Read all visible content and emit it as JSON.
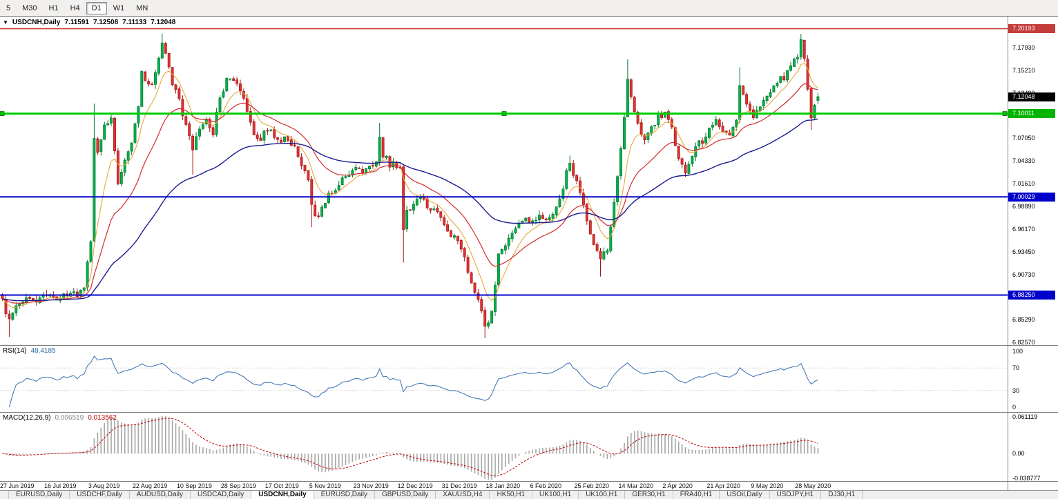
{
  "toolbar": {
    "timeframes": [
      {
        "label": "5",
        "active": false
      },
      {
        "label": "M30",
        "active": false
      },
      {
        "label": "H1",
        "active": false
      },
      {
        "label": "H4",
        "active": false
      },
      {
        "label": "D1",
        "active": true
      },
      {
        "label": "W1",
        "active": false
      },
      {
        "label": "MN",
        "active": false
      }
    ]
  },
  "quote_header": {
    "collapse_icon": "▼",
    "symbol_period": "USDCNH,Daily",
    "open": "7.11591",
    "high": "7.12508",
    "low": "7.11133",
    "close": "7.12048"
  },
  "current_price": {
    "label": "7.12048",
    "bg": "#000000",
    "fg": "#ffffff"
  },
  "price_axis": {
    "labels": [
      "7.17930",
      "7.15210",
      "7.12490",
      "7.09770",
      "7.07050",
      "7.04330",
      "7.01610",
      "6.98890",
      "6.96170",
      "6.93450",
      "6.90730",
      "6.88010",
      "6.85290",
      "6.82570"
    ]
  },
  "hlines": [
    {
      "price": 7.20193,
      "label": "7.20193",
      "color": "#c43b3b",
      "label_bg": "#c43b3b",
      "thickness": 1.6,
      "selected": false
    },
    {
      "price": 7.10011,
      "label": "7.10011",
      "color": "#00cc00",
      "label_bg": "#00b400",
      "thickness": 3,
      "selected": true
    },
    {
      "price": 7.00029,
      "label": "7.00029",
      "color": "#0000cc",
      "label_bg": "#0000cc",
      "thickness": 2,
      "selected": false
    },
    {
      "price": 6.8825,
      "label": "6.88250",
      "color": "#0000cc",
      "label_bg": "#0000cc",
      "thickness": 2,
      "selected": false
    }
  ],
  "indicators": {
    "rsi": {
      "title": "RSI(14)",
      "value": "48.4185",
      "levels": [
        "100",
        "70",
        "30",
        "0"
      ]
    },
    "macd": {
      "title": "MACD(12,26,9)",
      "value_main": "0.006519",
      "value_signal": "0.013562",
      "axis_labels": [
        {
          "label": "0.061119",
          "value": 0.061119
        },
        {
          "label": "0.00",
          "value": 0
        },
        {
          "label": "-0.038777",
          "value": -0.038777
        }
      ]
    }
  },
  "date_axis": {
    "labels": [
      "27 Jun 2019",
      "16 Jul 2019",
      "3 Aug 2019",
      "22 Aug 2019",
      "10 Sep 2019",
      "28 Sep 2019",
      "17 Oct 2019",
      "5 Nov 2019",
      "23 Nov 2019",
      "12 Dec 2019",
      "31 Dec 2019",
      "18 Jan 2020",
      "6 Feb 2020",
      "25 Feb 2020",
      "14 Mar 2020",
      "2 Apr 2020",
      "21 Apr 2020",
      "9 May 2020",
      "28 May 2020"
    ]
  },
  "tabs": [
    {
      "label": "EURUSD,Daily",
      "active": false
    },
    {
      "label": "USDCHF,Daily",
      "active": false
    },
    {
      "label": "AUDUSD,Daily",
      "active": false
    },
    {
      "label": "USDCAD,Daily",
      "active": false
    },
    {
      "label": "USDCNH,Daily",
      "active": true
    },
    {
      "label": "EURUSD,Daily",
      "active": false
    },
    {
      "label": "GBPUSD,Daily",
      "active": false
    },
    {
      "label": "XAUUSD,H4",
      "active": false
    },
    {
      "label": "HK50,H1",
      "active": false
    },
    {
      "label": "UK100,H1",
      "active": false
    },
    {
      "label": "UK100,H1",
      "active": false
    },
    {
      "label": "GER30,H1",
      "active": false
    },
    {
      "label": "FRA40,H1",
      "active": false
    },
    {
      "label": "USOil,Daily",
      "active": false
    },
    {
      "label": "USDJPY,H1",
      "active": false
    },
    {
      "label": "DJ30,H1",
      "active": false
    }
  ],
  "chart_data": {
    "type": "candlestick",
    "title": "USDCNH,Daily",
    "symbol": "USDCNH",
    "timeframe": "Daily",
    "price_top": 7.2165,
    "price_bottom": 6.8225,
    "candle_count": 241,
    "candle_spacing": 4.92,
    "ohlc_current": {
      "open": 7.11591,
      "high": 7.12508,
      "low": 7.11133,
      "close": 7.12048
    },
    "ma": [
      {
        "period": 8,
        "color": "#e8a63c"
      },
      {
        "period": 21,
        "color": "#d22a2a"
      },
      {
        "period": 60,
        "color": "#1a1a8e"
      }
    ],
    "colors": {
      "up": "#00b24a",
      "up_border": "#00752d",
      "down": "#e03232",
      "down_border": "#a31515",
      "rsi_line": "#4878b8",
      "macd_hist": "#a9a9a9",
      "macd_signal": "#c00000"
    },
    "price_path": [
      [
        0,
        6.875
      ],
      [
        2,
        6.852
      ],
      [
        4,
        6.872
      ],
      [
        8,
        6.878
      ],
      [
        13,
        6.879
      ],
      [
        20,
        6.882
      ],
      [
        24,
        6.888
      ],
      [
        25,
        6.926
      ],
      [
        26,
        6.948
      ],
      [
        27,
        7.072
      ],
      [
        28,
        7.058
      ],
      [
        30,
        7.083
      ],
      [
        32,
        7.096
      ],
      [
        34,
        7.018
      ],
      [
        36,
        7.042
      ],
      [
        38,
        7.062
      ],
      [
        40,
        7.112
      ],
      [
        41,
        7.148
      ],
      [
        43,
        7.132
      ],
      [
        45,
        7.146
      ],
      [
        47,
        7.183
      ],
      [
        48,
        7.17
      ],
      [
        50,
        7.136
      ],
      [
        52,
        7.116
      ],
      [
        54,
        7.086
      ],
      [
        56,
        7.06
      ],
      [
        58,
        7.082
      ],
      [
        60,
        7.09
      ],
      [
        62,
        7.078
      ],
      [
        64,
        7.118
      ],
      [
        66,
        7.138
      ],
      [
        68,
        7.144
      ],
      [
        70,
        7.128
      ],
      [
        72,
        7.106
      ],
      [
        74,
        7.078
      ],
      [
        76,
        7.07
      ],
      [
        78,
        7.082
      ],
      [
        80,
        7.072
      ],
      [
        82,
        7.066
      ],
      [
        84,
        7.07
      ],
      [
        86,
        7.058
      ],
      [
        88,
        7.034
      ],
      [
        90,
        7.02
      ],
      [
        91,
        6.99
      ],
      [
        92,
        6.973
      ],
      [
        94,
        6.99
      ],
      [
        96,
        7.002
      ],
      [
        98,
        7.012
      ],
      [
        100,
        7.02
      ],
      [
        102,
        7.028
      ],
      [
        104,
        7.036
      ],
      [
        106,
        7.03
      ],
      [
        108,
        7.036
      ],
      [
        110,
        7.046
      ],
      [
        111,
        7.07
      ],
      [
        112,
        7.052
      ],
      [
        114,
        7.04
      ],
      [
        116,
        7.036
      ],
      [
        117,
        7.033
      ],
      [
        118,
        6.958
      ],
      [
        119,
        6.98
      ],
      [
        121,
        6.992
      ],
      [
        123,
        6.996
      ],
      [
        125,
        6.99
      ],
      [
        127,
        6.985
      ],
      [
        129,
        6.976
      ],
      [
        131,
        6.962
      ],
      [
        133,
        6.951
      ],
      [
        135,
        6.937
      ],
      [
        137,
        6.912
      ],
      [
        139,
        6.887
      ],
      [
        141,
        6.862
      ],
      [
        142,
        6.846
      ],
      [
        143,
        6.853
      ],
      [
        144,
        6.866
      ],
      [
        146,
        6.928
      ],
      [
        148,
        6.941
      ],
      [
        150,
        6.959
      ],
      [
        152,
        6.971
      ],
      [
        154,
        6.976
      ],
      [
        156,
        6.971
      ],
      [
        158,
        6.979
      ],
      [
        160,
        6.975
      ],
      [
        162,
        6.982
      ],
      [
        164,
        6.996
      ],
      [
        166,
        7.028
      ],
      [
        167,
        7.042
      ],
      [
        168,
        7.028
      ],
      [
        170,
        7.004
      ],
      [
        172,
        6.972
      ],
      [
        174,
        6.946
      ],
      [
        176,
        6.923
      ],
      [
        178,
        6.94
      ],
      [
        180,
        6.994
      ],
      [
        182,
        7.058
      ],
      [
        184,
        7.142
      ],
      [
        185,
        7.118
      ],
      [
        187,
        7.088
      ],
      [
        189,
        7.068
      ],
      [
        191,
        7.082
      ],
      [
        193,
        7.094
      ],
      [
        195,
        7.099
      ],
      [
        197,
        7.083
      ],
      [
        199,
        7.049
      ],
      [
        201,
        7.033
      ],
      [
        203,
        7.052
      ],
      [
        205,
        7.065
      ],
      [
        207,
        7.072
      ],
      [
        208,
        7.085
      ],
      [
        210,
        7.094
      ],
      [
        212,
        7.082
      ],
      [
        214,
        7.073
      ],
      [
        216,
        7.088
      ],
      [
        217,
        7.132
      ],
      [
        219,
        7.111
      ],
      [
        221,
        7.098
      ],
      [
        223,
        7.107
      ],
      [
        225,
        7.117
      ],
      [
        227,
        7.129
      ],
      [
        229,
        7.141
      ],
      [
        231,
        7.149
      ],
      [
        233,
        7.161
      ],
      [
        234,
        7.171
      ],
      [
        235,
        7.186
      ],
      [
        236,
        7.163
      ],
      [
        237,
        7.131
      ],
      [
        238,
        7.097
      ],
      [
        239,
        7.113
      ],
      [
        240,
        7.12048
      ]
    ],
    "spikes": [
      {
        "i": 2,
        "lo": 6.8325
      },
      {
        "i": 27,
        "hi": 7.112
      },
      {
        "i": 47,
        "hi": 7.1962
      },
      {
        "i": 56,
        "lo": 7.027
      },
      {
        "i": 91,
        "lo": 6.964
      },
      {
        "i": 111,
        "hi": 7.089
      },
      {
        "i": 118,
        "lo": 6.9215
      },
      {
        "i": 142,
        "lo": 6.8308
      },
      {
        "i": 167,
        "hi": 7.0496
      },
      {
        "i": 176,
        "lo": 6.9048
      },
      {
        "i": 184,
        "hi": 7.1652
      },
      {
        "i": 217,
        "hi": 7.1558
      },
      {
        "i": 235,
        "hi": 7.1957
      },
      {
        "i": 238,
        "lo": 7.0806
      }
    ]
  }
}
